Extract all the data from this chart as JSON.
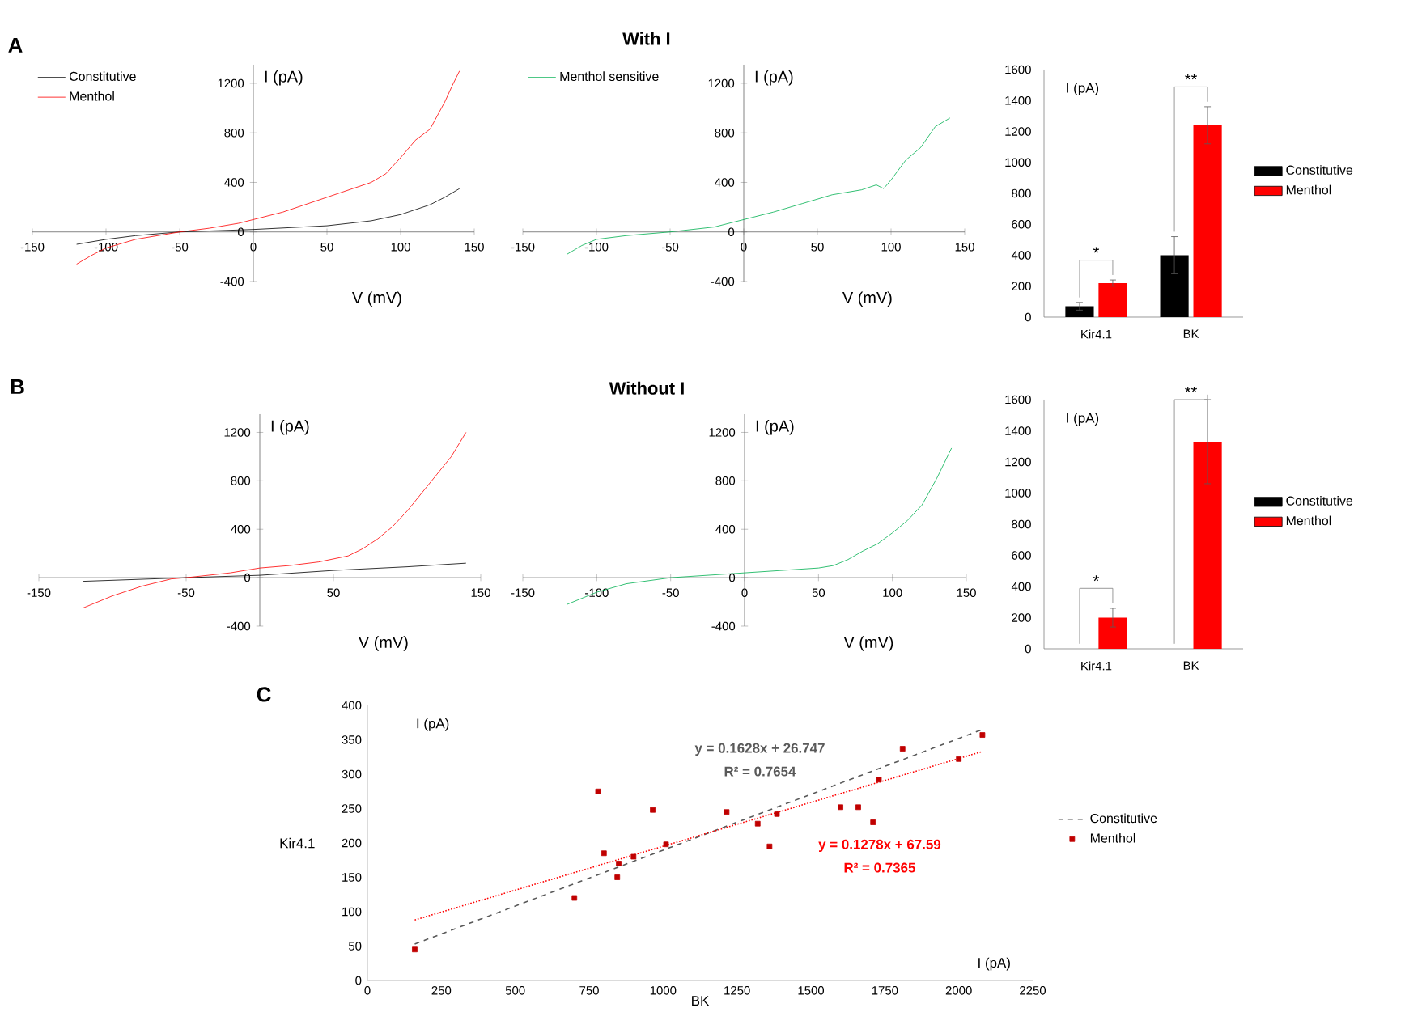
{
  "chart_data": [
    {
      "type": "line",
      "annotations": [
        "A"
      ],
      "xlabel": "V (mV)",
      "ylabel": "I (pA)",
      "xlim": [
        -150,
        150
      ],
      "ylim": [
        -400,
        1350
      ],
      "xticks": [
        -150,
        -100,
        -50,
        0,
        50,
        100,
        150
      ],
      "yticks": [
        -400,
        0,
        400,
        800,
        1200
      ],
      "legend": "top left",
      "series": [
        {
          "name": "Constitutive",
          "color": "#000000",
          "x": [
            -120,
            -100,
            -80,
            -50,
            0,
            50,
            80,
            100,
            120,
            130,
            140
          ],
          "values": [
            -100,
            -60,
            -30,
            0,
            20,
            50,
            90,
            140,
            220,
            280,
            350
          ]
        },
        {
          "name": "Menthol",
          "color": "#ff0000",
          "x": [
            -120,
            -110,
            -100,
            -80,
            -60,
            -50,
            -30,
            -10,
            0,
            20,
            40,
            60,
            80,
            90,
            100,
            110,
            120,
            130,
            135,
            140
          ],
          "values": [
            -260,
            -190,
            -130,
            -60,
            -20,
            0,
            30,
            70,
            100,
            160,
            240,
            320,
            400,
            470,
            600,
            740,
            830,
            1050,
            1180,
            1300
          ]
        }
      ]
    },
    {
      "type": "line",
      "title": "With I",
      "xlabel": "V (mV)",
      "ylabel": "I (pA)",
      "xlim": [
        -150,
        150
      ],
      "ylim": [
        -400,
        1350
      ],
      "xticks": [
        -150,
        -100,
        -50,
        0,
        50,
        100,
        150
      ],
      "yticks": [
        -400,
        0,
        400,
        800,
        1200
      ],
      "legend": "top left",
      "series": [
        {
          "name": "Menthol sensitive",
          "color": "#00b050",
          "x": [
            -120,
            -110,
            -100,
            -80,
            -50,
            -20,
            0,
            20,
            40,
            60,
            80,
            90,
            95,
            100,
            110,
            120,
            130,
            140
          ],
          "values": [
            -180,
            -110,
            -60,
            -30,
            0,
            40,
            100,
            160,
            230,
            300,
            340,
            380,
            350,
            420,
            580,
            680,
            850,
            920
          ]
        }
      ]
    },
    {
      "type": "bar",
      "annotations": [
        "*",
        "**"
      ],
      "ylabel": "I (pA)",
      "categories": [
        "Kir4.1",
        "BK"
      ],
      "ylim": [
        0,
        1600
      ],
      "yticks": [
        0,
        200,
        400,
        600,
        800,
        1000,
        1200,
        1400,
        1600
      ],
      "legend": "right",
      "series": [
        {
          "name": "Constitutive",
          "color": "#000000",
          "values": [
            70,
            400
          ],
          "errors": [
            25,
            120
          ]
        },
        {
          "name": "Menthol",
          "color": "#ff0000",
          "values": [
            220,
            1240
          ],
          "errors": [
            20,
            120
          ]
        }
      ]
    },
    {
      "type": "line",
      "annotations": [
        "B"
      ],
      "xlabel": "V (mV)",
      "ylabel": "I (pA)",
      "xlim": [
        -150,
        150
      ],
      "ylim": [
        -400,
        1350
      ],
      "xticks": [
        -150,
        -50,
        50,
        150
      ],
      "yticks": [
        -400,
        0,
        400,
        800,
        1200
      ],
      "series": [
        {
          "color": "#000000",
          "x": [
            -120,
            -50,
            0,
            50,
            100,
            140
          ],
          "values": [
            -30,
            0,
            20,
            60,
            90,
            120
          ]
        },
        {
          "color": "#ff0000",
          "x": [
            -120,
            -100,
            -80,
            -60,
            -50,
            -20,
            0,
            20,
            40,
            60,
            70,
            80,
            90,
            100,
            110,
            120,
            130,
            140
          ],
          "values": [
            -250,
            -150,
            -70,
            -10,
            0,
            40,
            80,
            100,
            130,
            180,
            240,
            320,
            420,
            550,
            700,
            850,
            1000,
            1200
          ]
        }
      ]
    },
    {
      "type": "line",
      "title": "Without I",
      "xlabel": "V (mV)",
      "ylabel": "I (pA)",
      "xlim": [
        -150,
        150
      ],
      "ylim": [
        -400,
        1350
      ],
      "xticks": [
        -150,
        -100,
        -50,
        0,
        50,
        100,
        150
      ],
      "yticks": [
        -400,
        0,
        400,
        800,
        1200
      ],
      "series": [
        {
          "color": "#00b050",
          "x": [
            -120,
            -100,
            -80,
            -50,
            0,
            50,
            60,
            70,
            80,
            90,
            100,
            110,
            120,
            130,
            140
          ],
          "values": [
            -220,
            -120,
            -50,
            0,
            40,
            80,
            100,
            150,
            220,
            280,
            370,
            470,
            600,
            820,
            1070
          ]
        }
      ]
    },
    {
      "type": "bar",
      "annotations": [
        "*",
        "**"
      ],
      "ylabel": "I (pA)",
      "categories": [
        "Kir4.1",
        "BK"
      ],
      "ylim": [
        0,
        1600
      ],
      "yticks": [
        0,
        200,
        400,
        600,
        800,
        1000,
        1200,
        1400,
        1600
      ],
      "legend": "right",
      "series": [
        {
          "name": "Constitutive",
          "color": "#000000",
          "values": [
            0,
            0
          ],
          "errors": [
            null,
            null
          ]
        },
        {
          "name": "Menthol",
          "color": "#ff0000",
          "values": [
            200,
            1330
          ],
          "errors": [
            60,
            270
          ]
        }
      ]
    },
    {
      "type": "scatter",
      "annotations": [
        "C",
        "I (pA)",
        "I (pA)",
        "y = 0.1628x + 26.747",
        "R² = 0.7654",
        "y = 0.1278x + 67.59",
        "R² = 0.7365"
      ],
      "xlabel": "BK",
      "ylabel": "Kir4.1",
      "xlim": [
        0,
        2250
      ],
      "ylim": [
        0,
        400
      ],
      "xticks": [
        0,
        250,
        500,
        750,
        1000,
        1250,
        1500,
        1750,
        2000,
        2250
      ],
      "yticks": [
        0,
        50,
        100,
        150,
        200,
        250,
        300,
        350,
        400
      ],
      "legend": "right",
      "series": [
        {
          "name": "Constitutive",
          "type": "line",
          "line_style": "dashed",
          "color": "#595959",
          "x": [
            160,
            2080
          ],
          "values": [
            53,
            365
          ]
        },
        {
          "name": "Menthol",
          "type": "scatter",
          "marker": "square",
          "color": "#c00000",
          "x": [
            160,
            700,
            780,
            800,
            845,
            850,
            900,
            965,
            1010,
            1215,
            1320,
            1360,
            1385,
            1600,
            1660,
            1710,
            1730,
            1810,
            2000,
            2080
          ],
          "values": [
            45,
            120,
            275,
            185,
            150,
            170,
            180,
            248,
            198,
            245,
            228,
            195,
            242,
            252,
            252,
            230,
            292,
            337,
            322,
            357
          ]
        },
        {
          "type": "line",
          "line_style": "dotted",
          "color": "#ff0000",
          "x": [
            160,
            2080
          ],
          "values": [
            88,
            333
          ]
        }
      ]
    }
  ]
}
